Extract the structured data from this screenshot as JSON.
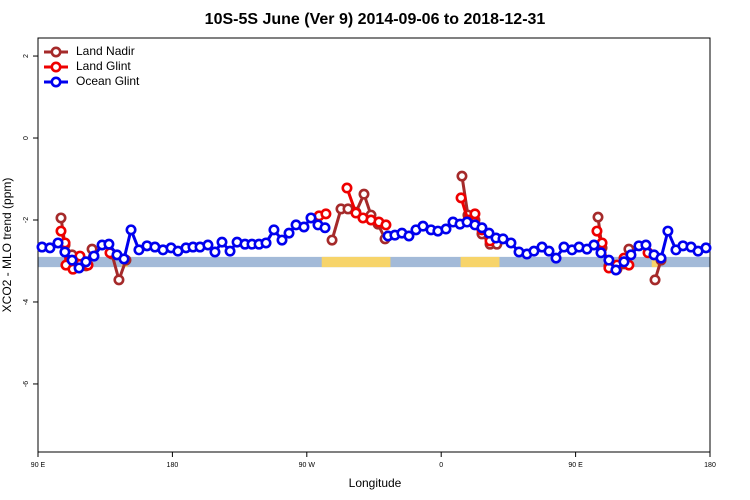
{
  "chart_data": {
    "type": "line",
    "title": "10S-5S June (Ver 9)   2014-09-06 to 2018-12-31",
    "x_label": "Longitude",
    "y_label": "XCO2 - MLO trend (ppm)",
    "xlim": [
      90,
      540
    ],
    "ylim": [
      -7.66,
      2.44
    ],
    "xticks": [
      {
        "value": 90,
        "label": "90 E"
      },
      180,
      {
        "value": 270,
        "label": "90 W"
      },
      {
        "value": 360,
        "label": "0"
      },
      {
        "value": 450,
        "label": "90 E"
      },
      {
        "value": 540,
        "label": "180"
      }
    ],
    "yticks": [
      -6,
      -4,
      -2,
      0,
      2
    ],
    "legend": "top-left",
    "surface_band": {
      "ylim": [
        -3.15,
        -2.9
      ],
      "ocean_color": "#a3bad8",
      "land_color": "#f7d46a",
      "land_segments": [
        [
          146,
          150
        ],
        [
          280,
          326
        ],
        [
          373,
          399
        ],
        [
          501,
          506
        ]
      ]
    },
    "series": [
      {
        "name": "Land Nadir",
        "color": "#a52a2a",
        "x": [
          105.4,
          108.1,
          112.8,
          117.5,
          122.1,
          126.2,
          null,
          139.5,
          144.2,
          148.9,
          null,
          286.9,
          292.9,
          297.6,
          302.9,
          308.3,
          313,
          317.7,
          322.4,
          null,
          373.9,
          377.9,
          382.6,
          387.3,
          392.7,
          397.3,
          null,
          465,
          467.7,
          472.3,
          477.7,
          482.4,
          485.7,
          null,
          503.2,
          507.2
        ],
        "values": [
          -1.95,
          -2.61,
          -2.85,
          -2.98,
          -3.12,
          -2.71,
          null,
          -2.83,
          -3.46,
          -2.98,
          null,
          -2.49,
          -1.73,
          -1.73,
          -1.81,
          -1.37,
          -1.88,
          -2.1,
          -2.46,
          null,
          -0.93,
          -1.88,
          -2.0,
          -2.34,
          -2.59,
          -2.59,
          null,
          -1.93,
          -2.68,
          -3.12,
          -3.2,
          -3.07,
          -2.71,
          null,
          -3.46,
          -2.98
        ]
      },
      {
        "name": "Land Glint",
        "color": "#ee0000",
        "x": [
          105.4,
          108.1,
          108.7,
          113.4,
          118.1,
          123.5,
          null,
          138.2,
          null,
          278.2,
          282.8,
          null,
          296.9,
          302.9,
          307.6,
          313,
          318.3,
          323,
          null,
          373.3,
          377.9,
          382.6,
          387.3,
          392.7,
          null,
          464.3,
          467.7,
          472.3,
          477.7,
          482.4,
          485.7,
          null,
          498.5
        ],
        "values": [
          -2.27,
          -2.56,
          -3.1,
          -3.2,
          -2.88,
          -3.1,
          null,
          -2.8,
          null,
          -1.9,
          -1.85,
          null,
          -1.22,
          -1.83,
          -1.95,
          -2.0,
          -2.05,
          -2.12,
          null,
          -1.46,
          -2.0,
          -1.85,
          -2.24,
          -2.51,
          null,
          -2.27,
          -2.56,
          -3.17,
          -3.1,
          -2.93,
          -3.1,
          null,
          -2.8
        ]
      },
      {
        "name": "Ocean Glint",
        "color": "#0000ee",
        "x": [
          92.7,
          98,
          103.4,
          108,
          112.8,
          117.5,
          122.1,
          127.5,
          132.9,
          137.5,
          142.9,
          147.6,
          152.3,
          157.6,
          163,
          168.3,
          173.7,
          179.1,
          183.7,
          189.1,
          193.8,
          198.5,
          203.8,
          208.5,
          213.2,
          218.6,
          223.3,
          228.6,
          233.3,
          238,
          242.7,
          248,
          253.4,
          258.1,
          262.8,
          268.1,
          272.8,
          277.5,
          282.2,
          null,
          324.4,
          329,
          333.7,
          338.4,
          343.1,
          347.8,
          353.2,
          357.8,
          363.2,
          367.9,
          372.6,
          377.3,
          382.6,
          387.3,
          392,
          396.7,
          401.4,
          406.7,
          412.1,
          417.4,
          422.1,
          427.5,
          432.2,
          436.9,
          442.2,
          447.6,
          452.3,
          457.6,
          462.3,
          467,
          472.3,
          477,
          482.4,
          487.1,
          492.4,
          497.1,
          502.5,
          507.2,
          511.8,
          517.2,
          521.9,
          527.3,
          532,
          537.3
        ],
        "values": [
          -2.66,
          -2.68,
          -2.56,
          -2.78,
          -2.98,
          -3.17,
          -3.02,
          -2.88,
          -2.61,
          -2.59,
          -2.85,
          -2.95,
          -2.24,
          -2.73,
          -2.63,
          -2.66,
          -2.73,
          -2.68,
          -2.76,
          -2.68,
          -2.66,
          -2.66,
          -2.61,
          -2.78,
          -2.54,
          -2.76,
          -2.54,
          -2.59,
          -2.59,
          -2.59,
          -2.56,
          -2.24,
          -2.49,
          -2.32,
          -2.12,
          -2.17,
          -1.95,
          -2.12,
          -2.19,
          null,
          -2.39,
          -2.37,
          -2.32,
          -2.39,
          -2.24,
          -2.15,
          -2.24,
          -2.27,
          -2.22,
          -2.05,
          -2.1,
          -2.05,
          -2.12,
          -2.19,
          -2.32,
          -2.44,
          -2.46,
          -2.56,
          -2.78,
          -2.83,
          -2.76,
          -2.66,
          -2.76,
          -2.93,
          -2.66,
          -2.73,
          -2.66,
          -2.71,
          -2.61,
          -2.8,
          -2.98,
          -3.22,
          -3.02,
          -2.85,
          -2.63,
          -2.61,
          -2.85,
          -2.93,
          -2.27,
          -2.73,
          -2.63,
          -2.66,
          -2.76,
          -2.68
        ]
      }
    ]
  }
}
